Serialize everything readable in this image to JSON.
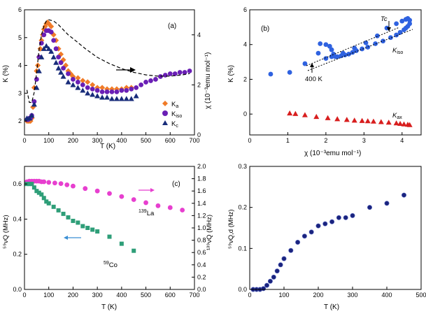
{
  "chart_data": [
    {
      "id": "a",
      "type": "scatter",
      "panel_label": "(a)",
      "xlabel": "T (K)",
      "ylabel": "K (%)",
      "y2label": "χ (10⁻³emu mol⁻¹)",
      "xlim": [
        0,
        700
      ],
      "ylim": [
        1.5,
        6
      ],
      "y2lim": [
        0,
        5
      ],
      "xticks": [
        0,
        100,
        200,
        300,
        400,
        500,
        600,
        700
      ],
      "yticks": [
        2,
        3,
        4,
        5,
        6
      ],
      "y2ticks": [
        0,
        2,
        4
      ],
      "legend_position": "lower-right",
      "series": [
        {
          "name": "Ka",
          "label_main": "K",
          "label_sub": "a",
          "color": "#f07b28",
          "marker": "diamond",
          "x": [
            10,
            15,
            20,
            25,
            30,
            35,
            40,
            50,
            55,
            60,
            65,
            70,
            75,
            80,
            85,
            90,
            95,
            100,
            110,
            120,
            130,
            140,
            150,
            160,
            170,
            180,
            190,
            200,
            220,
            240,
            260,
            280,
            300,
            320,
            340,
            360,
            380,
            400,
            420,
            440
          ],
          "y": [
            2.0,
            2.0,
            2.0,
            2.0,
            2.1,
            2.5,
            3.2,
            3.8,
            4.0,
            4.3,
            4.6,
            4.9,
            5.1,
            5.3,
            5.4,
            5.5,
            5.55,
            5.5,
            5.4,
            5.1,
            4.9,
            4.6,
            4.4,
            4.2,
            4.0,
            3.8,
            3.7,
            3.6,
            3.55,
            3.45,
            3.4,
            3.3,
            3.2,
            3.2,
            3.15,
            3.15,
            3.15,
            3.15,
            3.2,
            3.2
          ]
        },
        {
          "name": "Kiso",
          "label_main": "K",
          "label_sub": "iso",
          "color": "#6a1fb5",
          "marker": "circle",
          "x": [
            10,
            15,
            20,
            25,
            30,
            40,
            50,
            60,
            70,
            80,
            90,
            100,
            110,
            120,
            130,
            140,
            150,
            160,
            180,
            200,
            220,
            240,
            260,
            280,
            300,
            320,
            340,
            360,
            380,
            400,
            420,
            440,
            460,
            480,
            500,
            520,
            540,
            560,
            580,
            600,
            620,
            640,
            660,
            680
          ],
          "y": [
            2.05,
            2.05,
            2.1,
            2.1,
            2.2,
            2.7,
            3.5,
            4.3,
            4.8,
            5.1,
            5.25,
            5.25,
            5.2,
            4.9,
            4.6,
            4.3,
            4.1,
            3.9,
            3.7,
            3.5,
            3.4,
            3.3,
            3.2,
            3.15,
            3.1,
            3.05,
            3.05,
            3.05,
            3.05,
            3.1,
            3.1,
            3.15,
            3.2,
            3.3,
            3.4,
            3.45,
            3.5,
            3.6,
            3.65,
            3.7,
            3.7,
            3.75,
            3.75,
            3.8
          ]
        },
        {
          "name": "Kc",
          "label_main": "K",
          "label_sub": "c",
          "color": "#182c7a",
          "marker": "triangle",
          "x": [
            10,
            20,
            30,
            40,
            50,
            60,
            70,
            80,
            90,
            100,
            110,
            120,
            130,
            140,
            150,
            160,
            180,
            200,
            220,
            240,
            260,
            280,
            300,
            320,
            340,
            360,
            380,
            400,
            420,
            440,
            460
          ],
          "y": [
            2.1,
            2.1,
            2.2,
            2.6,
            3.2,
            3.8,
            4.3,
            4.6,
            4.7,
            4.6,
            4.5,
            4.3,
            4.1,
            3.9,
            3.75,
            3.6,
            3.4,
            3.3,
            3.2,
            3.1,
            3.0,
            2.95,
            2.9,
            2.85,
            2.85,
            2.8,
            2.8,
            2.8,
            2.8,
            2.8,
            2.9
          ]
        },
        {
          "name": "chi",
          "color": "#000000",
          "style": "dashed-line",
          "axis": "y2",
          "x": [
            10,
            20,
            30,
            40,
            50,
            60,
            70,
            80,
            90,
            100,
            120,
            140,
            160,
            180,
            200,
            250,
            300,
            350,
            400,
            450,
            500,
            550,
            600,
            650,
            680
          ],
          "y": [
            1.8,
            1.3,
            1.3,
            1.7,
            2.5,
            3.4,
            4.0,
            4.35,
            4.55,
            4.6,
            4.55,
            4.4,
            4.2,
            4.0,
            3.85,
            3.45,
            3.1,
            2.85,
            2.65,
            2.5,
            2.4,
            2.35,
            2.35,
            2.4,
            2.45
          ]
        }
      ]
    },
    {
      "id": "b",
      "type": "scatter",
      "panel_label": "(b)",
      "xlabel": "χ (10⁻³emu mol⁻¹)",
      "ylabel": "K (%)",
      "xlim": [
        0,
        4.5
      ],
      "ylim": [
        -1.2,
        6
      ],
      "xticks": [
        0,
        1,
        2,
        3,
        4
      ],
      "yticks": [
        0,
        2,
        4,
        6
      ],
      "annotations": {
        "tc": "Tc",
        "k400": "400 K",
        "kiso_main": "K",
        "kiso_sub": "iso",
        "kax_main": "K",
        "kax_sub": "ax"
      },
      "series": [
        {
          "name": "Kiso",
          "color": "#2f62e0",
          "marker": "circle",
          "x": [
            0.55,
            1.05,
            1.45,
            1.8,
            1.85,
            2.0,
            2.1,
            2.15,
            2.2,
            2.25,
            2.3,
            2.4,
            2.5,
            2.6,
            2.7,
            2.8,
            2.95,
            3.1,
            3.3,
            3.5,
            3.7,
            3.85,
            3.95,
            4.05,
            4.1,
            4.15,
            4.2,
            4.2,
            4.15,
            4.1,
            4.0,
            3.85,
            3.6,
            3.35,
            3.05,
            2.75,
            2.45,
            2.15,
            2.0
          ],
          "y": [
            2.3,
            2.4,
            2.9,
            3.5,
            4.05,
            4.0,
            3.9,
            3.7,
            3.45,
            3.3,
            3.3,
            3.35,
            3.4,
            3.45,
            3.55,
            3.65,
            3.75,
            3.85,
            4.05,
            4.2,
            4.4,
            4.55,
            4.7,
            4.85,
            4.95,
            5.05,
            5.2,
            5.4,
            5.5,
            5.45,
            5.35,
            5.2,
            4.95,
            4.5,
            4.1,
            3.8,
            3.5,
            3.3,
            3.2
          ]
        },
        {
          "name": "Kax",
          "color": "#d81e1e",
          "marker": "triangle",
          "x": [
            1.05,
            1.2,
            1.45,
            1.75,
            2.05,
            2.3,
            2.55,
            2.75,
            2.95,
            3.1,
            3.25,
            3.45,
            3.65,
            3.85,
            3.95,
            4.05,
            4.15,
            4.2
          ],
          "y": [
            0.05,
            0.02,
            -0.05,
            -0.15,
            -0.22,
            -0.28,
            -0.32,
            -0.36,
            -0.38,
            -0.4,
            -0.42,
            -0.45,
            -0.48,
            -0.52,
            -0.55,
            -0.58,
            -0.6,
            -0.62
          ]
        }
      ]
    },
    {
      "id": "c",
      "type": "scatter",
      "panel_label": "(c)",
      "xlabel": "T (K)",
      "ylabel": "⁵⁹νQ (MHz)",
      "y2label": "¹³⁹νQ (MHz)",
      "xlim": [
        0,
        700
      ],
      "ylim": [
        0,
        0.7
      ],
      "y2lim": [
        0,
        2.0
      ],
      "xticks": [
        0,
        100,
        200,
        300,
        400,
        500,
        600,
        700
      ],
      "yticks": [
        0.0,
        0.2,
        0.4,
        0.6
      ],
      "y2ticks": [
        0.0,
        0.2,
        0.4,
        0.6,
        0.8,
        1.0,
        1.2,
        1.4,
        1.6,
        1.8,
        2.0
      ],
      "series": [
        {
          "name": "139La",
          "label_sup": "139",
          "label_main": "La",
          "color": "#e73fcf",
          "marker": "circle",
          "axis": "y2",
          "x": [
            10,
            20,
            30,
            40,
            50,
            60,
            70,
            80,
            100,
            125,
            150,
            175,
            200,
            250,
            300,
            350,
            400,
            450,
            500,
            550,
            600,
            650
          ],
          "y": [
            1.75,
            1.76,
            1.76,
            1.76,
            1.76,
            1.76,
            1.75,
            1.75,
            1.74,
            1.73,
            1.72,
            1.7,
            1.68,
            1.64,
            1.6,
            1.56,
            1.51,
            1.46,
            1.41,
            1.36,
            1.33,
            1.29
          ]
        },
        {
          "name": "59Co",
          "label_sup": "59",
          "label_main": "Co",
          "color": "#2e9e78",
          "marker": "square",
          "x": [
            10,
            20,
            30,
            40,
            50,
            60,
            70,
            80,
            90,
            100,
            120,
            140,
            160,
            180,
            200,
            220,
            240,
            260,
            280,
            300,
            350,
            400,
            450
          ],
          "y": [
            0.6,
            0.6,
            0.6,
            0.58,
            0.56,
            0.55,
            0.54,
            0.52,
            0.5,
            0.49,
            0.47,
            0.45,
            0.43,
            0.41,
            0.39,
            0.38,
            0.36,
            0.35,
            0.34,
            0.33,
            0.3,
            0.26,
            0.22
          ]
        }
      ]
    },
    {
      "id": "d",
      "type": "scatter",
      "xlabel": "T (K)",
      "ylabel": "⁵⁹νQ,d (MHz)",
      "xlim": [
        0,
        500
      ],
      "ylim": [
        0,
        0.3
      ],
      "xticks": [
        0,
        100,
        200,
        300,
        400,
        500
      ],
      "yticks": [
        0.0,
        0.1,
        0.2,
        0.3
      ],
      "series": [
        {
          "name": "59vQd",
          "color": "#1a237e",
          "marker": "ball",
          "x": [
            10,
            20,
            30,
            40,
            50,
            60,
            70,
            80,
            90,
            100,
            120,
            140,
            160,
            180,
            200,
            220,
            240,
            260,
            280,
            300,
            350,
            400,
            450
          ],
          "y": [
            0,
            0,
            0,
            0.002,
            0.01,
            0.02,
            0.03,
            0.045,
            0.06,
            0.075,
            0.095,
            0.115,
            0.13,
            0.14,
            0.155,
            0.16,
            0.165,
            0.175,
            0.175,
            0.18,
            0.2,
            0.21,
            0.23
          ]
        }
      ]
    }
  ]
}
